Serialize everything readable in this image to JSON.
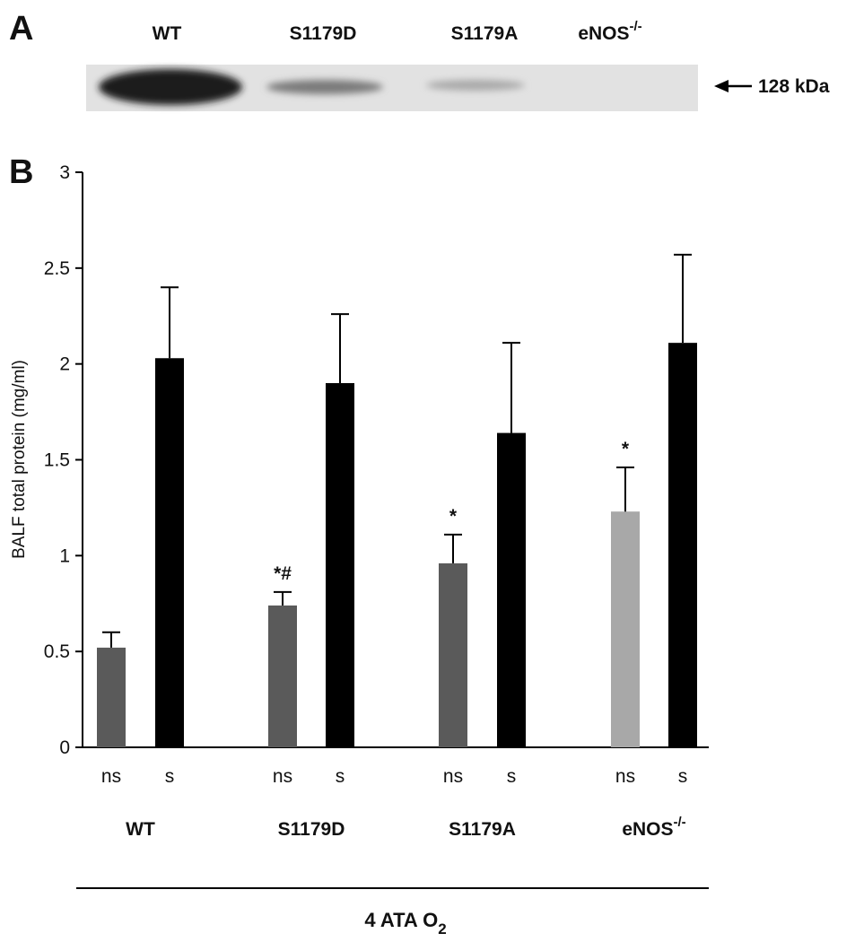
{
  "blot": {
    "panel_label": "A",
    "lanes": [
      {
        "name": "WT"
      },
      {
        "name": "S1179D"
      },
      {
        "name": "S1179A"
      },
      {
        "name": "eNOS",
        "superscript": "-/-"
      }
    ],
    "marker": "128 kDa"
  },
  "chart_data": {
    "type": "bar",
    "panel_label": "B",
    "ylabel": "BALF total protein (mg/ml)",
    "categories": [
      "ns",
      "s",
      "ns",
      "s",
      "ns",
      "s",
      "ns",
      "s"
    ],
    "values": [
      0.52,
      2.03,
      0.74,
      1.9,
      0.96,
      1.64,
      1.23,
      2.11
    ],
    "errors": [
      0.08,
      0.37,
      0.07,
      0.36,
      0.15,
      0.47,
      0.23,
      0.46
    ],
    "colors": [
      "#5a5a5a",
      "#000000",
      "#5a5a5a",
      "#000000",
      "#5a5a5a",
      "#000000",
      "#a8a8a8",
      "#000000"
    ],
    "annotations": [
      null,
      null,
      "*#",
      null,
      "*",
      null,
      "*",
      null
    ],
    "groups": [
      {
        "name": "WT"
      },
      {
        "name": "S1179D"
      },
      {
        "name": "S1179A"
      },
      {
        "name": "eNOS",
        "superscript": "-/-"
      }
    ],
    "xlabel": {
      "text": "4 ATA O",
      "subscript": "2"
    },
    "ylim": [
      0,
      3
    ],
    "yticks": [
      0,
      0.5,
      1,
      1.5,
      2,
      2.5,
      3
    ]
  }
}
